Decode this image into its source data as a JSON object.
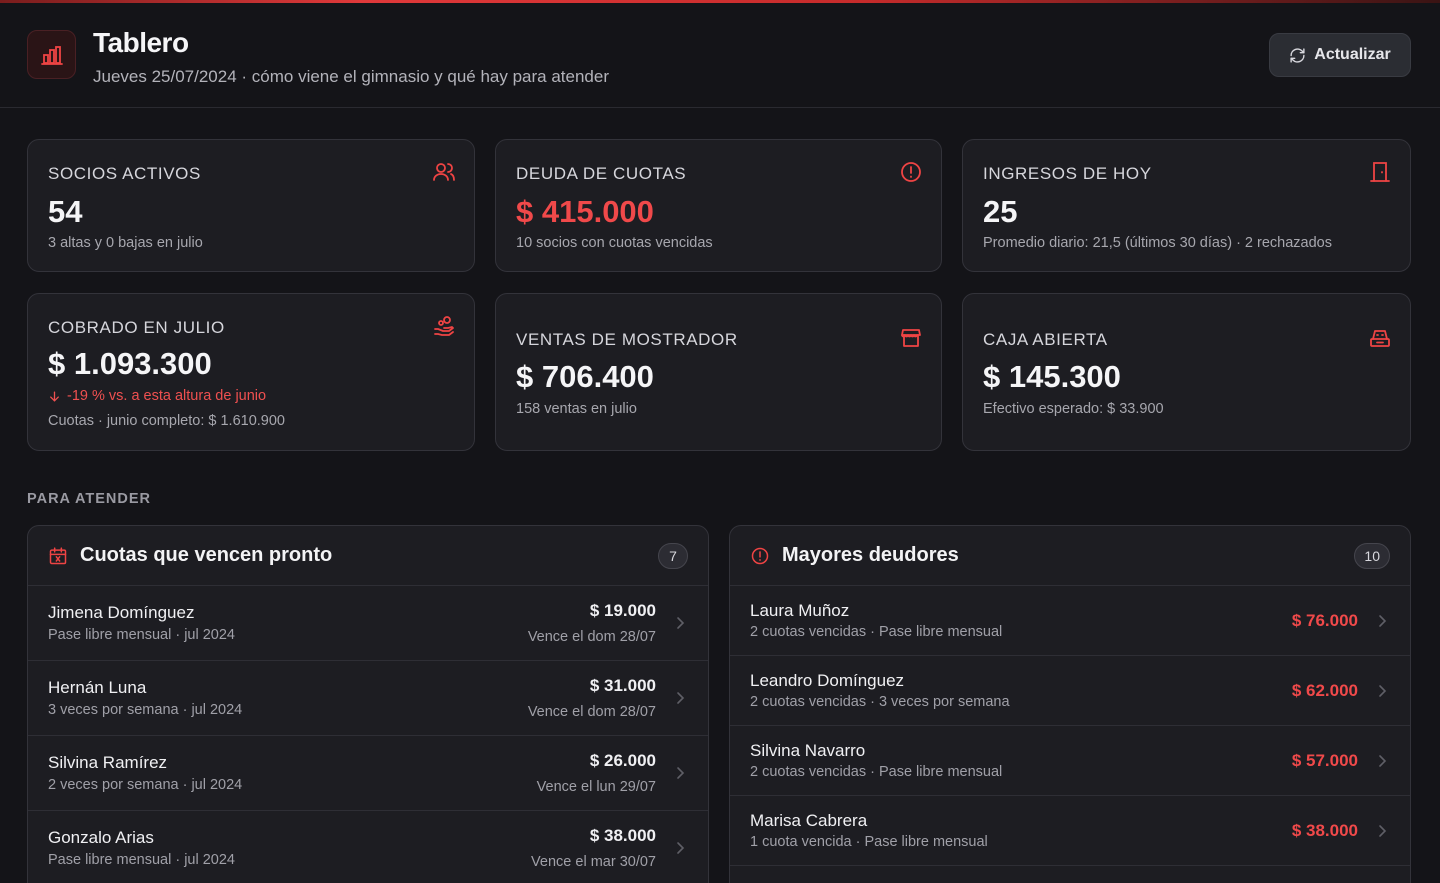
{
  "header": {
    "title": "Tablero",
    "subtitle": "Jueves 25/07/2024 · cómo viene el gimnasio y qué hay para atender",
    "refresh_label": "Actualizar",
    "logo_icon": "bar-chart-icon"
  },
  "colors": {
    "accent": "#f0494a",
    "background": "#141418",
    "card": "#1d1d22"
  },
  "stats": {
    "socios": {
      "label": "Socios activos",
      "value": "54",
      "note": "3 altas y 0 bajas en julio",
      "icon": "users-icon"
    },
    "deuda": {
      "label": "Deuda de cuotas",
      "value": "$ 415.000",
      "note": "10 socios con cuotas vencidas",
      "icon": "alert-circle-icon"
    },
    "ingresos": {
      "label": "Ingresos de hoy",
      "value": "25",
      "note": "Promedio diario: 21,5 (últimos 30 días) · 2 rechazados",
      "icon": "door-icon"
    },
    "cobrado": {
      "label": "Cobrado en julio",
      "value": "$ 1.093.300",
      "trend": "-19 % vs. a esta altura de junio",
      "note": "Cuotas · junio completo: $ 1.610.900",
      "icon": "hand-coins-icon"
    },
    "ventas": {
      "label": "Ventas de mostrador",
      "value": "$ 706.400",
      "note": "158 ventas en julio",
      "icon": "store-icon"
    },
    "caja": {
      "label": "Caja abierta",
      "value": "$ 145.300",
      "note": "Efectivo esperado: $ 33.900",
      "icon": "cash-register-icon"
    }
  },
  "section_label": "PARA ATENDER",
  "vencen": {
    "title": "Cuotas que vencen pronto",
    "count": "7",
    "icon": "calendar-x-icon",
    "items": [
      {
        "name": "Jimena Domínguez",
        "meta": "Pase libre mensual · jul 2024",
        "amount": "$ 19.000",
        "due": "Vence el dom 28/07"
      },
      {
        "name": "Hernán Luna",
        "meta": "3 veces por semana · jul 2024",
        "amount": "$ 31.000",
        "due": "Vence el dom 28/07"
      },
      {
        "name": "Silvina Ramírez",
        "meta": "2 veces por semana · jul 2024",
        "amount": "$ 26.000",
        "due": "Vence el lun 29/07"
      },
      {
        "name": "Gonzalo Arias",
        "meta": "Pase libre mensual · jul 2024",
        "amount": "$ 38.000",
        "due": "Vence el mar 30/07"
      }
    ]
  },
  "deudores": {
    "title": "Mayores deudores",
    "count": "10",
    "icon": "alert-circle-icon",
    "items": [
      {
        "name": "Laura Muñoz",
        "meta": "2 cuotas vencidas · Pase libre mensual",
        "amount": "$ 76.000"
      },
      {
        "name": "Leandro Domínguez",
        "meta": "2 cuotas vencidas · 3 veces por semana",
        "amount": "$ 62.000"
      },
      {
        "name": "Silvina Navarro",
        "meta": "2 cuotas vencidas · Pase libre mensual",
        "amount": "$ 57.000"
      },
      {
        "name": "Marisa Cabrera",
        "meta": "1 cuota vencida · Pase libre mensual",
        "amount": "$ 38.000"
      }
    ]
  }
}
